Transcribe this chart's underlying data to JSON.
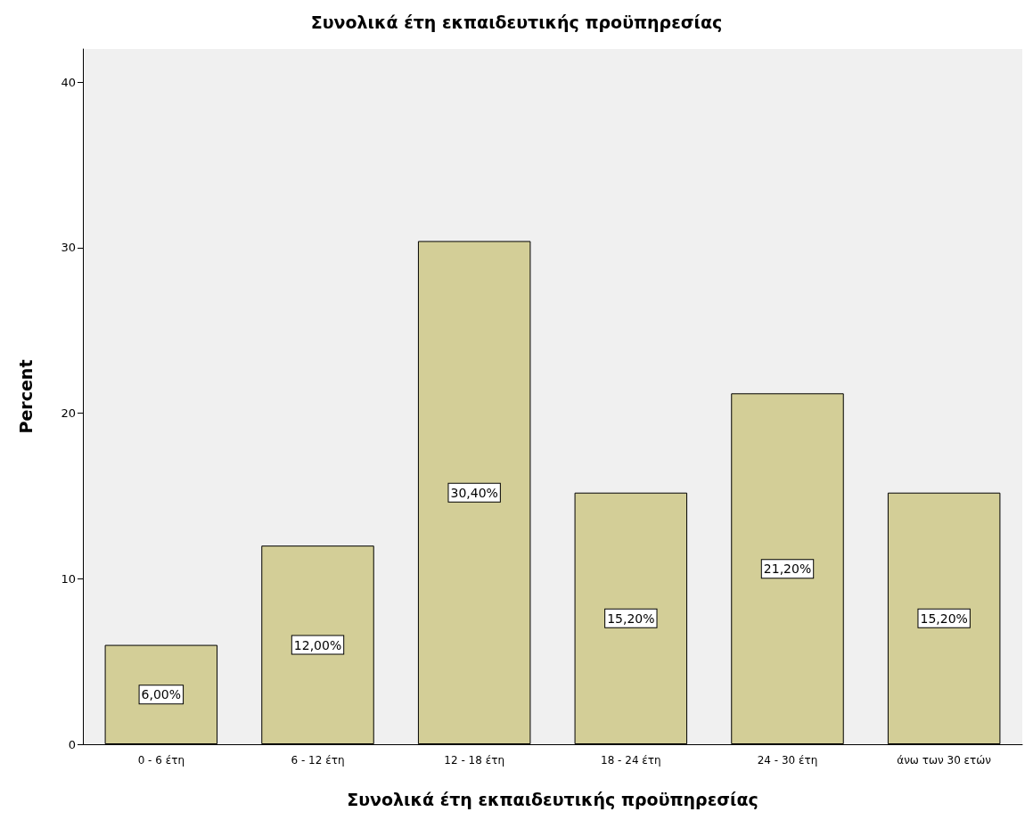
{
  "chart_data": {
    "type": "bar",
    "title": "Συνολικά έτη εκπαιδευτικής προϋπηρεσίας",
    "xlabel": "Συνολικά έτη εκπαιδευτικής προϋπηρεσίας",
    "ylabel": "Percent",
    "categories": [
      "0 - 6 έτη",
      "6 - 12 έτη",
      "12 - 18 έτη",
      "18 - 24 έτη",
      "24 - 30 έτη",
      "άνω των 30 ετών"
    ],
    "values": [
      6.0,
      12.0,
      30.4,
      15.2,
      21.2,
      15.2
    ],
    "value_labels": [
      "6,00%",
      "12,00%",
      "30,40%",
      "15,20%",
      "21,20%",
      "15,20%"
    ],
    "color": "#d3ce97",
    "ylim": [
      0,
      42
    ],
    "yticks": [
      0,
      10,
      20,
      30,
      40
    ],
    "grid": false
  }
}
